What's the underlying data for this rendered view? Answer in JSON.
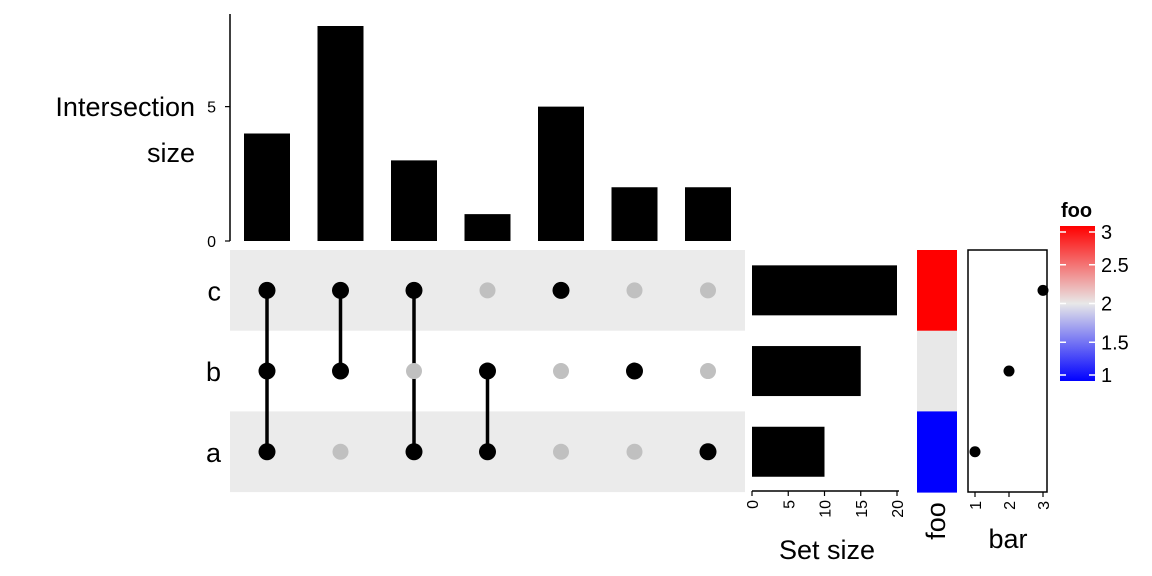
{
  "chart_data": {
    "type": "upset",
    "intersection_axis": {
      "label_lines": [
        "Intersection",
        "size"
      ],
      "ticks": [
        0,
        5
      ],
      "ylim": [
        0,
        8
      ]
    },
    "intersections": [
      {
        "members": [
          "c",
          "b",
          "a"
        ],
        "size": 4
      },
      {
        "members": [
          "c",
          "b"
        ],
        "size": 8
      },
      {
        "members": [
          "c",
          "a"
        ],
        "size": 3
      },
      {
        "members": [
          "b",
          "a"
        ],
        "size": 1
      },
      {
        "members": [
          "c"
        ],
        "size": 5
      },
      {
        "members": [
          "b"
        ],
        "size": 2
      },
      {
        "members": [
          "a"
        ],
        "size": 2
      }
    ],
    "sets": [
      {
        "name": "c",
        "size": 20,
        "foo": 3,
        "bar": 3
      },
      {
        "name": "b",
        "size": 15,
        "foo": 2,
        "bar": 2
      },
      {
        "name": "a",
        "size": 10,
        "foo": 1,
        "bar": 1
      }
    ],
    "set_size_axis": {
      "label": "Set size",
      "ticks": [
        0,
        5,
        10,
        15,
        20
      ],
      "xlim": [
        0,
        20
      ]
    },
    "foo_panel": {
      "label": "foo"
    },
    "bar_panel": {
      "label": "bar",
      "ticks": [
        1,
        2,
        3
      ],
      "xlim": [
        1,
        3
      ]
    },
    "legend": {
      "title": "foo",
      "ticks": [
        "3",
        "2.5",
        "2",
        "1.5",
        "1"
      ],
      "range": [
        1,
        3
      ],
      "colors": {
        "low": "#0000ff",
        "mid": "#e8e8e8",
        "high": "#ff0000"
      },
      "placement": "right"
    },
    "colors": {
      "bar": "#000000",
      "dot_active": "#000000",
      "dot_inactive": "#c0c0c0",
      "stripe": "#ebebeb"
    }
  }
}
